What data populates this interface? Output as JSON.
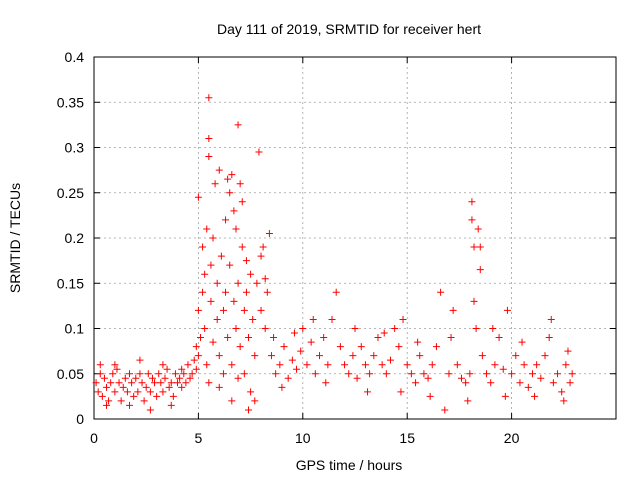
{
  "chart_data": {
    "type": "scatter",
    "title": "Day 111 of 2019, SRMTID for receiver hert",
    "xlabel": "GPS time / hours",
    "ylabel": "SRMTID / TECUs",
    "xlim": [
      0,
      25
    ],
    "ylim": [
      0,
      0.4
    ],
    "grid": true,
    "marker": "+",
    "x_ticks": [
      0,
      5,
      10,
      15,
      20
    ],
    "x_tick_labels": [
      "0",
      "5",
      "10",
      "15",
      "20"
    ],
    "y_ticks": [
      0,
      0.05,
      0.1,
      0.15,
      0.2,
      0.25,
      0.3,
      0.35,
      0.4
    ],
    "y_tick_labels": [
      "0",
      "0.05",
      "0.1",
      "0.15",
      "0.2",
      "0.25",
      "0.3",
      "0.35",
      "0.4"
    ],
    "series": [
      {
        "name": "SRMTID",
        "color": "#ff0000",
        "points": [
          [
            0.1,
            0.04
          ],
          [
            0.2,
            0.03
          ],
          [
            0.3,
            0.05
          ],
          [
            0.4,
            0.025
          ],
          [
            0.5,
            0.045
          ],
          [
            0.6,
            0.035
          ],
          [
            0.7,
            0.02
          ],
          [
            0.8,
            0.04
          ],
          [
            0.9,
            0.05
          ],
          [
            1.0,
            0.03
          ],
          [
            1.1,
            0.055
          ],
          [
            1.2,
            0.04
          ],
          [
            1.3,
            0.02
          ],
          [
            1.4,
            0.035
          ],
          [
            1.5,
            0.045
          ],
          [
            1.6,
            0.03
          ],
          [
            1.7,
            0.05
          ],
          [
            1.8,
            0.04
          ],
          [
            1.9,
            0.025
          ],
          [
            2.0,
            0.045
          ],
          [
            2.1,
            0.03
          ],
          [
            2.2,
            0.05
          ],
          [
            2.3,
            0.04
          ],
          [
            2.4,
            0.02
          ],
          [
            2.5,
            0.035
          ],
          [
            2.6,
            0.05
          ],
          [
            2.7,
            0.03
          ],
          [
            2.8,
            0.045
          ],
          [
            2.9,
            0.04
          ],
          [
            3.0,
            0.025
          ],
          [
            3.1,
            0.05
          ],
          [
            3.2,
            0.04
          ],
          [
            3.3,
            0.03
          ],
          [
            3.4,
            0.045
          ],
          [
            3.5,
            0.055
          ],
          [
            3.6,
            0.035
          ],
          [
            3.7,
            0.04
          ],
          [
            3.8,
            0.025
          ],
          [
            3.9,
            0.05
          ],
          [
            4.0,
            0.04
          ],
          [
            4.1,
            0.045
          ],
          [
            4.2,
            0.035
          ],
          [
            4.3,
            0.05
          ],
          [
            4.4,
            0.04
          ],
          [
            4.5,
            0.06
          ],
          [
            4.6,
            0.045
          ],
          [
            4.7,
            0.05
          ],
          [
            4.8,
            0.065
          ],
          [
            4.9,
            0.055
          ],
          [
            5.0,
            0.07
          ],
          [
            0.3,
            0.06
          ],
          [
            1.0,
            0.06
          ],
          [
            2.2,
            0.065
          ],
          [
            3.3,
            0.06
          ],
          [
            0.6,
            0.015
          ],
          [
            1.7,
            0.015
          ],
          [
            2.7,
            0.01
          ],
          [
            3.7,
            0.015
          ],
          [
            4.2,
            0.055
          ],
          [
            4.9,
            0.08
          ],
          [
            5.0,
            0.245
          ],
          [
            5.0,
            0.12
          ],
          [
            5.1,
            0.09
          ],
          [
            5.2,
            0.19
          ],
          [
            5.2,
            0.14
          ],
          [
            5.3,
            0.1
          ],
          [
            5.3,
            0.16
          ],
          [
            5.4,
            0.06
          ],
          [
            5.4,
            0.21
          ],
          [
            5.5,
            0.29
          ],
          [
            5.5,
            0.31
          ],
          [
            5.5,
            0.355
          ],
          [
            5.6,
            0.13
          ],
          [
            5.6,
            0.17
          ],
          [
            5.7,
            0.085
          ],
          [
            5.7,
            0.2
          ],
          [
            5.8,
            0.26
          ],
          [
            5.9,
            0.15
          ],
          [
            5.9,
            0.11
          ],
          [
            6.0,
            0.07
          ],
          [
            6.0,
            0.275
          ],
          [
            6.1,
            0.18
          ],
          [
            6.2,
            0.12
          ],
          [
            6.2,
            0.05
          ],
          [
            6.3,
            0.22
          ],
          [
            6.3,
            0.14
          ],
          [
            6.4,
            0.265
          ],
          [
            6.4,
            0.09
          ],
          [
            6.5,
            0.25
          ],
          [
            6.5,
            0.17
          ],
          [
            6.6,
            0.27
          ],
          [
            6.6,
            0.06
          ],
          [
            6.7,
            0.13
          ],
          [
            6.7,
            0.23
          ],
          [
            6.8,
            0.21
          ],
          [
            6.8,
            0.1
          ],
          [
            6.9,
            0.325
          ],
          [
            6.9,
            0.15
          ],
          [
            7.0,
            0.26
          ],
          [
            7.0,
            0.08
          ],
          [
            7.1,
            0.24
          ],
          [
            7.1,
            0.19
          ],
          [
            7.2,
            0.12
          ],
          [
            7.2,
            0.05
          ],
          [
            7.3,
            0.175
          ],
          [
            7.3,
            0.14
          ],
          [
            7.4,
            0.09
          ],
          [
            7.5,
            0.16
          ],
          [
            7.5,
            0.03
          ],
          [
            7.6,
            0.11
          ],
          [
            7.7,
            0.07
          ],
          [
            7.8,
            0.15
          ],
          [
            7.9,
            0.295
          ],
          [
            8.0,
            0.18
          ],
          [
            8.0,
            0.12
          ],
          [
            8.1,
            0.19
          ],
          [
            8.2,
            0.1
          ],
          [
            8.2,
            0.155
          ],
          [
            8.3,
            0.14
          ],
          [
            8.4,
            0.205
          ],
          [
            6.0,
            0.035
          ],
          [
            6.6,
            0.02
          ],
          [
            7.4,
            0.01
          ],
          [
            7.7,
            0.02
          ],
          [
            5.5,
            0.04
          ],
          [
            6.9,
            0.045
          ],
          [
            8.5,
            0.07
          ],
          [
            8.7,
            0.05
          ],
          [
            8.9,
            0.06
          ],
          [
            9.1,
            0.08
          ],
          [
            9.3,
            0.045
          ],
          [
            9.5,
            0.065
          ],
          [
            9.7,
            0.055
          ],
          [
            9.9,
            0.075
          ],
          [
            10.0,
            0.1
          ],
          [
            10.2,
            0.06
          ],
          [
            10.4,
            0.085
          ],
          [
            10.6,
            0.05
          ],
          [
            10.8,
            0.07
          ],
          [
            11.0,
            0.09
          ],
          [
            11.2,
            0.06
          ],
          [
            11.4,
            0.11
          ],
          [
            11.6,
            0.14
          ],
          [
            11.8,
            0.08
          ],
          [
            12.0,
            0.06
          ],
          [
            12.2,
            0.05
          ],
          [
            12.4,
            0.07
          ],
          [
            12.6,
            0.045
          ],
          [
            12.8,
            0.08
          ],
          [
            13.0,
            0.06
          ],
          [
            13.2,
            0.05
          ],
          [
            13.4,
            0.07
          ],
          [
            13.6,
            0.09
          ],
          [
            13.8,
            0.06
          ],
          [
            14.0,
            0.05
          ],
          [
            14.2,
            0.065
          ],
          [
            14.4,
            0.1
          ],
          [
            14.6,
            0.08
          ],
          [
            14.8,
            0.11
          ],
          [
            15.0,
            0.06
          ],
          [
            15.2,
            0.05
          ],
          [
            15.4,
            0.04
          ],
          [
            15.6,
            0.07
          ],
          [
            15.8,
            0.05
          ],
          [
            16.0,
            0.045
          ],
          [
            16.2,
            0.06
          ],
          [
            16.4,
            0.08
          ],
          [
            16.6,
            0.14
          ],
          [
            16.8,
            0.01
          ],
          [
            17.0,
            0.05
          ],
          [
            17.2,
            0.12
          ],
          [
            17.4,
            0.06
          ],
          [
            17.6,
            0.045
          ],
          [
            17.8,
            0.04
          ],
          [
            18.0,
            0.05
          ],
          [
            18.1,
            0.24
          ],
          [
            18.1,
            0.22
          ],
          [
            18.2,
            0.19
          ],
          [
            18.2,
            0.13
          ],
          [
            18.3,
            0.1
          ],
          [
            18.4,
            0.21
          ],
          [
            18.5,
            0.165
          ],
          [
            18.5,
            0.19
          ],
          [
            18.6,
            0.07
          ],
          [
            18.8,
            0.05
          ],
          [
            19.0,
            0.04
          ],
          [
            19.2,
            0.06
          ],
          [
            19.4,
            0.09
          ],
          [
            19.6,
            0.055
          ],
          [
            19.8,
            0.12
          ],
          [
            20.0,
            0.05
          ],
          [
            20.2,
            0.07
          ],
          [
            20.4,
            0.04
          ],
          [
            20.6,
            0.06
          ],
          [
            20.8,
            0.035
          ],
          [
            21.0,
            0.05
          ],
          [
            21.2,
            0.06
          ],
          [
            21.4,
            0.045
          ],
          [
            21.6,
            0.07
          ],
          [
            21.8,
            0.09
          ],
          [
            22.0,
            0.04
          ],
          [
            22.2,
            0.05
          ],
          [
            22.4,
            0.03
          ],
          [
            22.6,
            0.06
          ],
          [
            22.8,
            0.04
          ],
          [
            22.9,
            0.05
          ],
          [
            8.6,
            0.09
          ],
          [
            9.0,
            0.035
          ],
          [
            9.6,
            0.095
          ],
          [
            10.5,
            0.11
          ],
          [
            11.1,
            0.04
          ],
          [
            12.5,
            0.1
          ],
          [
            13.1,
            0.03
          ],
          [
            13.9,
            0.095
          ],
          [
            14.7,
            0.03
          ],
          [
            15.5,
            0.085
          ],
          [
            16.1,
            0.025
          ],
          [
            17.1,
            0.09
          ],
          [
            17.9,
            0.02
          ],
          [
            19.1,
            0.1
          ],
          [
            19.7,
            0.025
          ],
          [
            20.5,
            0.085
          ],
          [
            21.1,
            0.025
          ],
          [
            21.9,
            0.11
          ],
          [
            22.5,
            0.02
          ],
          [
            22.7,
            0.075
          ]
        ]
      }
    ]
  }
}
